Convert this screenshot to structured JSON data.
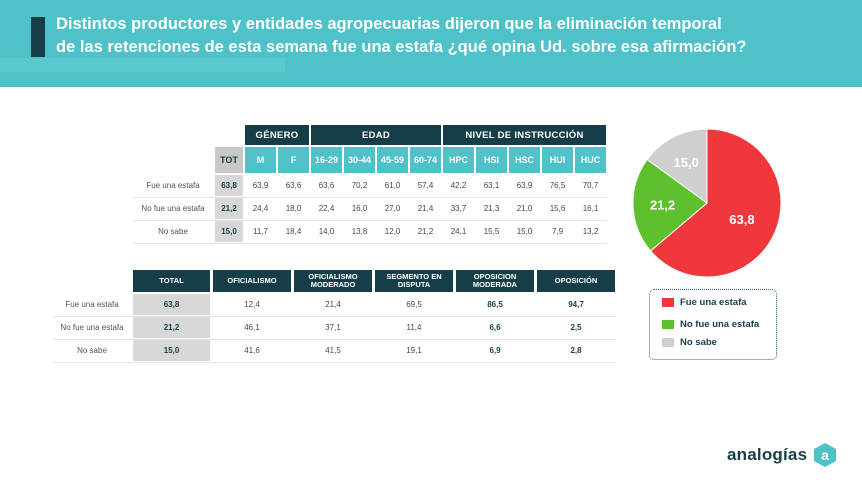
{
  "title": {
    "line1": "Distintos productores y entidades agropecuarias dijeron que la eliminación temporal",
    "line2": "de las retenciones de esta semana fue una estafa ¿qué opina Ud. sobre esa afirmación?"
  },
  "table1": {
    "groups": [
      "GÉNERO",
      "EDAD",
      "NIVEL DE INSTRUCCIÓN"
    ],
    "columns": [
      "TOT",
      "M",
      "F",
      "16-29",
      "30-44",
      "45-59",
      "60-74",
      "HPC",
      "HSI",
      "HSC",
      "HUI",
      "HUC"
    ],
    "rows": [
      {
        "label": "Fue una estafa",
        "values": [
          "63,8",
          "63,9",
          "63,6",
          "63,6",
          "70,2",
          "61,0",
          "57,4",
          "42,2",
          "63,1",
          "63,9",
          "76,5",
          "70,7"
        ]
      },
      {
        "label": "No fue una estafa",
        "values": [
          "21,2",
          "24,4",
          "18,0",
          "22,4",
          "16,0",
          "27,0",
          "21,4",
          "33,7",
          "21,3",
          "21,0",
          "15,6",
          "16,1"
        ]
      },
      {
        "label": "No sabe",
        "values": [
          "15,0",
          "11,7",
          "18,4",
          "14,0",
          "13,8",
          "12,0",
          "21,2",
          "24,1",
          "15,5",
          "15,0",
          "7,9",
          "13,2"
        ]
      }
    ]
  },
  "table2": {
    "columns": [
      "TOTAL",
      "OFICIALISMO",
      "OFICIALISMO MODERADO",
      "SEGMENTO EN DISPUTA",
      "OPOSICION MODERADA",
      "OPOSICIÓN"
    ],
    "rows": [
      {
        "label": "Fue una estafa",
        "values": [
          "63,8",
          "12,4",
          "21,4",
          "69,5",
          "86,5",
          "94,7"
        ]
      },
      {
        "label": "No fue una estafa",
        "values": [
          "21,2",
          "46,1",
          "37,1",
          "11,4",
          "6,6",
          "2,5"
        ]
      },
      {
        "label": "No sabe",
        "values": [
          "15,0",
          "41,6",
          "41,5",
          "19,1",
          "6,9",
          "2,8"
        ]
      }
    ]
  },
  "chart_data": {
    "type": "pie",
    "labels": [
      "Fue una estafa",
      "No fue una estafa",
      "No sabe"
    ],
    "values": [
      63.8,
      21.2,
      15.0
    ],
    "value_labels": [
      "63,8",
      "21,2",
      "15,0"
    ],
    "colors": [
      "#f0373c",
      "#5fc02e",
      "#cfcfcf"
    ],
    "legend": "below"
  },
  "brand": {
    "name": "analogías"
  }
}
